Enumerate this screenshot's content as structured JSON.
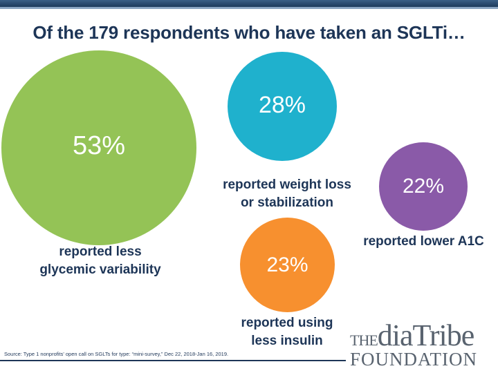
{
  "title": "Of the 179 respondents who have taken an SGLTi…",
  "stats": [
    {
      "value": "53%",
      "label_lines": [
        "reported less",
        "glycemic variability"
      ],
      "color": "#94c356"
    },
    {
      "value": "28%",
      "label_lines": [
        "reported weight loss",
        "or stabilization"
      ],
      "color": "#1fb1cd"
    },
    {
      "value": "22%",
      "label_lines": [
        "reported lower A1C"
      ],
      "color": "#8a5aa8"
    },
    {
      "value": "23%",
      "label_lines": [
        "reported using",
        "less insulin"
      ],
      "color": "#f7902f"
    }
  ],
  "source": "Source: Type 1 nonprofits' open call on SGLTs for type: “mini-survey,” Dec 22, 2018-Jan 16, 2019.",
  "logo": {
    "the": "THE",
    "diatribe": "diaTribe",
    "foundation": "FOUNDATION"
  },
  "colors": {
    "title": "#1d3557",
    "header_bar": "#1d3a5c",
    "logo": "#59636f"
  }
}
